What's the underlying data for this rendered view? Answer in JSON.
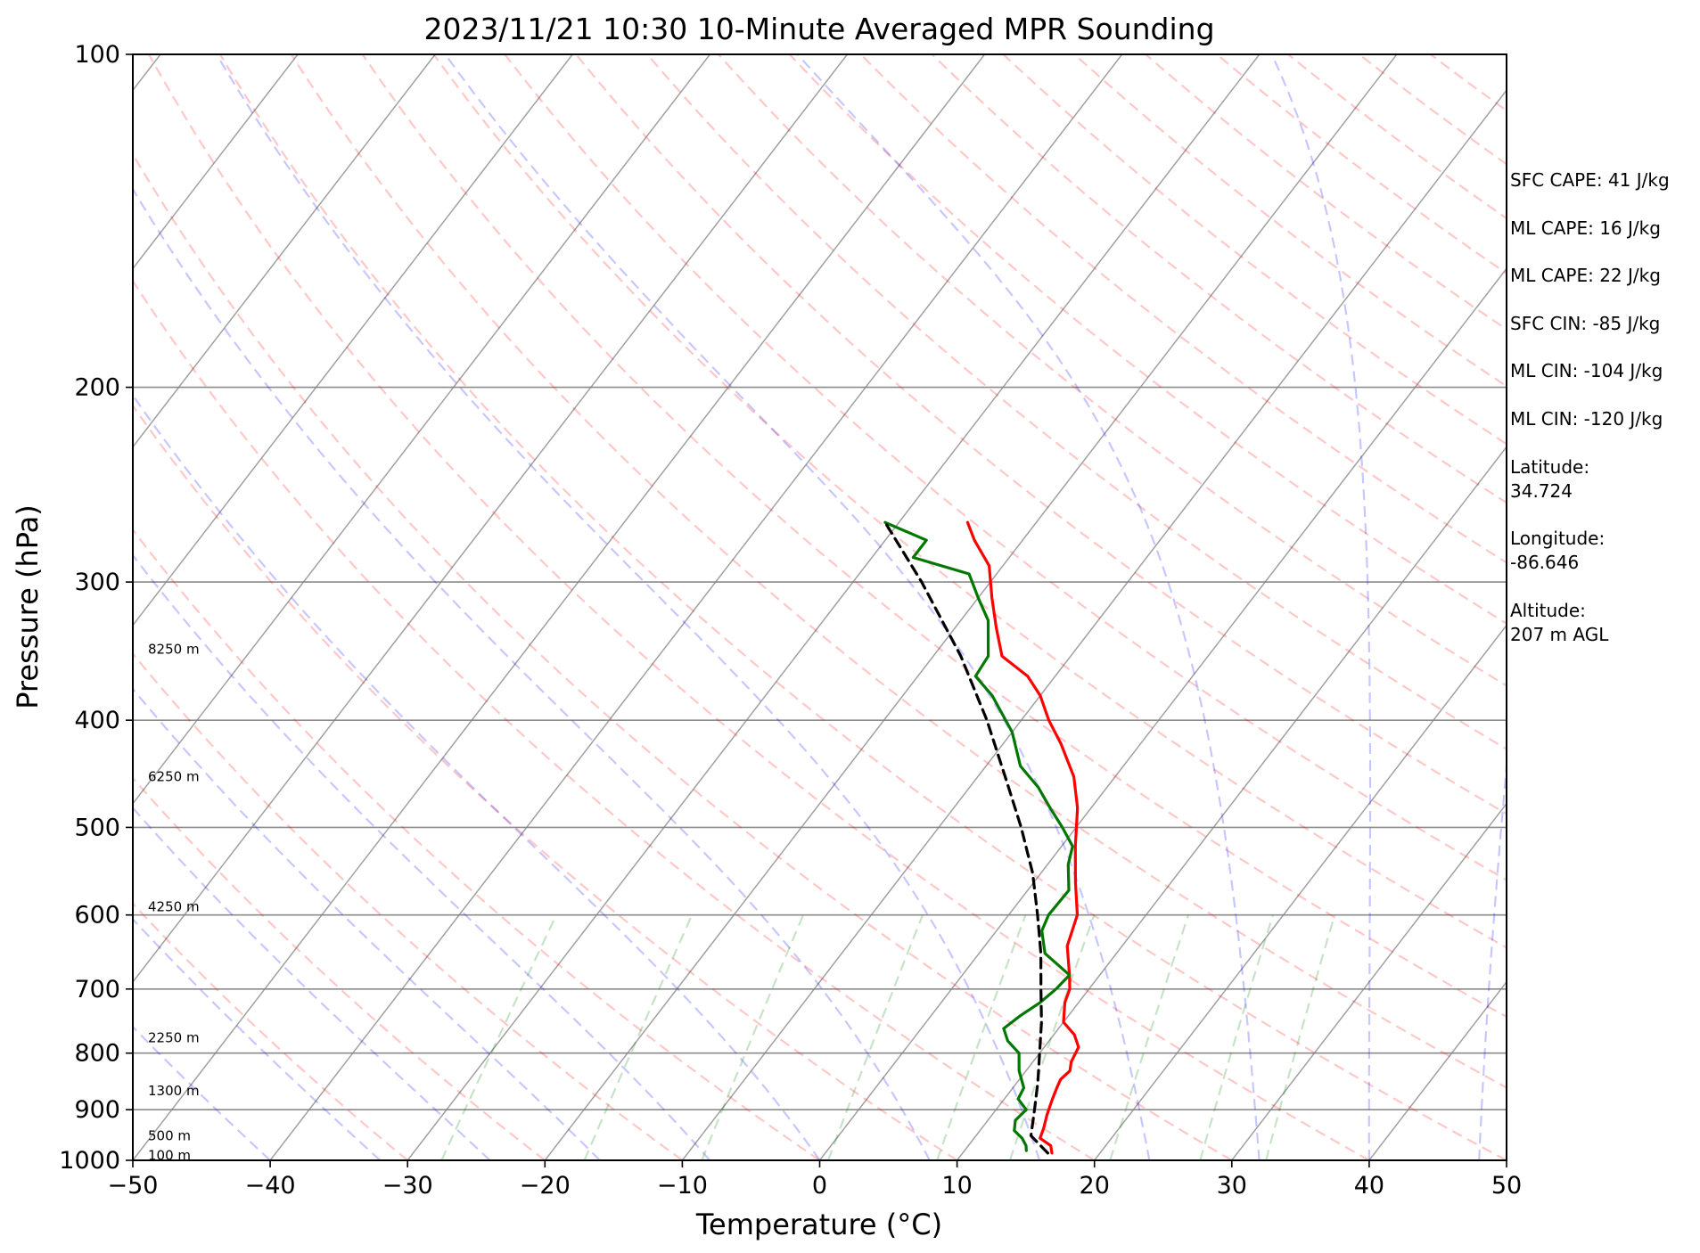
{
  "chart_data": {
    "type": "line",
    "subtype": "skew-t log-p sounding",
    "title": "2023/11/21 10:30 10-Minute Averaged MPR Sounding",
    "xlabel": "Temperature (°C)",
    "ylabel": "Pressure (hPa)",
    "xlim": [
      -50,
      50
    ],
    "ylim": [
      1000,
      100
    ],
    "y_scale": "log",
    "x_ticks": [
      "−50",
      "−40",
      "−30",
      "−20",
      "−10",
      "0",
      "10",
      "20",
      "30",
      "40",
      "50"
    ],
    "y_ticks": [
      "100",
      "200",
      "300",
      "400",
      "500",
      "600",
      "700",
      "800",
      "900",
      "1000"
    ],
    "height_labels": [
      {
        "text": "8250 m",
        "p": 345
      },
      {
        "text": "6250 m",
        "p": 450
      },
      {
        "text": "4250 m",
        "p": 590
      },
      {
        "text": "2250 m",
        "p": 775
      },
      {
        "text": "1300 m",
        "p": 865
      },
      {
        "text": "500 m",
        "p": 950
      },
      {
        "text": "100 m",
        "p": 990
      }
    ],
    "series": [
      {
        "key": "temperature",
        "color": "#ff0000",
        "points": [
          [
            985,
            16.5
          ],
          [
            970,
            16.0
          ],
          [
            955,
            14.8
          ],
          [
            935,
            14.5
          ],
          [
            910,
            14.0
          ],
          [
            880,
            13.5
          ],
          [
            860,
            13.2
          ],
          [
            845,
            13.0
          ],
          [
            830,
            13.2
          ],
          [
            815,
            12.8
          ],
          [
            790,
            12.5
          ],
          [
            770,
            11.5
          ],
          [
            750,
            10.0
          ],
          [
            720,
            9.0
          ],
          [
            700,
            8.6
          ],
          [
            680,
            7.8
          ],
          [
            640,
            6.0
          ],
          [
            600,
            5.0
          ],
          [
            560,
            3.0
          ],
          [
            520,
            1.0
          ],
          [
            480,
            -1.0
          ],
          [
            450,
            -3.0
          ],
          [
            420,
            -5.8
          ],
          [
            400,
            -8.0
          ],
          [
            380,
            -10.0
          ],
          [
            365,
            -12.0
          ],
          [
            350,
            -15.0
          ],
          [
            330,
            -17.0
          ],
          [
            310,
            -19.0
          ],
          [
            290,
            -21.0
          ],
          [
            275,
            -23.5
          ],
          [
            265,
            -25.0
          ]
        ]
      },
      {
        "key": "dewpoint",
        "color": "#007800",
        "points": [
          [
            980,
            14.5
          ],
          [
            970,
            14.2
          ],
          [
            955,
            13.5
          ],
          [
            940,
            12.5
          ],
          [
            920,
            12.0
          ],
          [
            900,
            12.2
          ],
          [
            880,
            11.0
          ],
          [
            860,
            10.8
          ],
          [
            830,
            9.5
          ],
          [
            800,
            8.5
          ],
          [
            780,
            7.0
          ],
          [
            760,
            6.0
          ],
          [
            740,
            6.5
          ],
          [
            720,
            7.2
          ],
          [
            700,
            7.6
          ],
          [
            680,
            7.8
          ],
          [
            650,
            4.8
          ],
          [
            620,
            3.3
          ],
          [
            600,
            2.9
          ],
          [
            570,
            3.0
          ],
          [
            540,
            1.5
          ],
          [
            520,
            0.8
          ],
          [
            500,
            -1.0
          ],
          [
            480,
            -3.0
          ],
          [
            460,
            -5.0
          ],
          [
            440,
            -7.5
          ],
          [
            410,
            -10.0
          ],
          [
            380,
            -13.5
          ],
          [
            365,
            -15.8
          ],
          [
            350,
            -16.0
          ],
          [
            325,
            -18.0
          ],
          [
            310,
            -20.0
          ],
          [
            295,
            -22.0
          ],
          [
            285,
            -27.0
          ],
          [
            275,
            -27.0
          ],
          [
            265,
            -31.0
          ]
        ]
      },
      {
        "key": "parcel",
        "color": "#000000",
        "style": "dashed",
        "points": [
          [
            985,
            16.2
          ],
          [
            950,
            14.0
          ],
          [
            900,
            12.8
          ],
          [
            850,
            11.5
          ],
          [
            800,
            10.0
          ],
          [
            750,
            8.4
          ],
          [
            700,
            6.5
          ],
          [
            650,
            4.5
          ],
          [
            600,
            2.1
          ],
          [
            550,
            -0.6
          ],
          [
            500,
            -4.0
          ],
          [
            450,
            -8.0
          ],
          [
            400,
            -12.5
          ],
          [
            350,
            -18.0
          ],
          [
            300,
            -25.0
          ],
          [
            265,
            -31.0
          ]
        ]
      }
    ],
    "background_lines": {
      "dry_adiabat_color": "#ff0000",
      "moist_adiabat_color": "#0000ff",
      "mixing_ratio_color": "#008000",
      "isotherm_color": "#808080",
      "isobar_color": "#808080"
    }
  },
  "stats": [
    "SFC CAPE: 41 J/kg",
    "ML CAPE: 16 J/kg",
    "ML CAPE: 22 J/kg",
    "SFC CIN: -85 J/kg",
    "ML CIN: -104 J/kg",
    "ML CIN: -120 J/kg",
    "Latitude:\n34.724",
    "Longitude:\n-86.646",
    "Altitude:\n207 m AGL"
  ]
}
